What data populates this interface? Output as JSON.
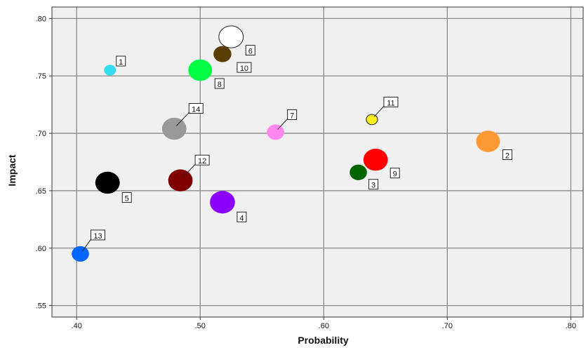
{
  "chart_data": {
    "type": "scatter",
    "title": "",
    "xlabel": "Probability",
    "ylabel": "Impact",
    "xlim": [
      0.38,
      0.81
    ],
    "ylim": [
      0.54,
      0.81
    ],
    "xticks": [
      0.4,
      0.5,
      0.6,
      0.7,
      0.8
    ],
    "xtick_labels": [
      ".40",
      ".50",
      ".60",
      ".70",
      ".80"
    ],
    "yticks": [
      0.55,
      0.6,
      0.65,
      0.7,
      0.75,
      0.8
    ],
    "ytick_labels": [
      ".55",
      ".60",
      ".65",
      ".70",
      ".75",
      ".80"
    ],
    "grid": true,
    "plot_background": "#f0f0f0",
    "gridline_color": "#8a8a8a",
    "points": [
      {
        "label": "1",
        "x": 0.427,
        "y": 0.755,
        "size": 1.0,
        "color": "#33ddee"
      },
      {
        "label": "2",
        "x": 0.733,
        "y": 0.693,
        "size": 2.0,
        "color": "#ff9933"
      },
      {
        "label": "3",
        "x": 0.628,
        "y": 0.666,
        "size": 1.45,
        "color": "#006400"
      },
      {
        "label": "4",
        "x": 0.518,
        "y": 0.64,
        "size": 2.1,
        "color": "#8b00ff"
      },
      {
        "label": "5",
        "x": 0.425,
        "y": 0.657,
        "size": 2.05,
        "color": "#000000"
      },
      {
        "label": "6",
        "x": 0.525,
        "y": 0.784,
        "size": 2.05,
        "color": "#ffffff"
      },
      {
        "label": "7",
        "x": 0.561,
        "y": 0.701,
        "size": 1.45,
        "color": "#ff88ee"
      },
      {
        "label": "8",
        "x": 0.5,
        "y": 0.755,
        "size": 2.0,
        "color": "#00ff44"
      },
      {
        "label": "9",
        "x": 0.642,
        "y": 0.677,
        "size": 2.05,
        "color": "#ff0000"
      },
      {
        "label": "10",
        "x": 0.518,
        "y": 0.769,
        "size": 1.5,
        "color": "#5c3d00"
      },
      {
        "label": "11",
        "x": 0.639,
        "y": 0.712,
        "size": 0.95,
        "color": "#ffee22"
      },
      {
        "label": "12",
        "x": 0.484,
        "y": 0.659,
        "size": 2.05,
        "color": "#800000"
      },
      {
        "label": "13",
        "x": 0.403,
        "y": 0.595,
        "size": 1.45,
        "color": "#0066ff"
      },
      {
        "label": "14",
        "x": 0.479,
        "y": 0.704,
        "size": 2.05,
        "color": "#999999"
      }
    ]
  }
}
